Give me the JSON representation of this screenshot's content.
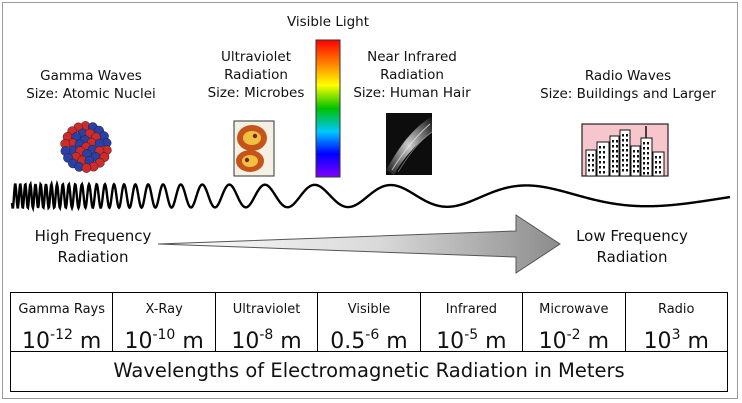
{
  "colors": {
    "spectrum": [
      "#ff0000",
      "#ff8000",
      "#ffff00",
      "#00c000",
      "#00c8ff",
      "#0000ff",
      "#8000ff"
    ],
    "gamma_particle_red": "#d12a2a",
    "gamma_particle_blue": "#2b3fa8",
    "microbe": "#c4541a",
    "arrow_dark": "#9a9a9a",
    "arrow_light": "#f2f2f2",
    "sky_pink": "#f7c6cc"
  },
  "icons": {
    "gamma": "atomic-nucleus-icon",
    "uv": "microbes-icon",
    "visible": "rainbow-spectrum-icon",
    "ir": "human-hair-icon",
    "radio": "city-buildings-icon"
  },
  "categories": [
    {
      "title": "Gamma Waves",
      "size": "Size: Atomic Nuclei"
    },
    {
      "title": "Ultraviolet",
      "title2": "Radiation",
      "size": "Size: Microbes"
    },
    {
      "title": "Visible Light"
    },
    {
      "title": "Near Infrared",
      "title2": "Radiation",
      "size": "Size: Human Hair"
    },
    {
      "title": "Radio Waves",
      "size": "Size: Buildings and Larger"
    }
  ],
  "frequency": {
    "high_line1": "High Frequency",
    "high_line2": "Radiation",
    "low_line1": "Low Frequency",
    "low_line2": "Radiation"
  },
  "table": {
    "columns": [
      {
        "name": "Gamma Rays",
        "mantissa": "10",
        "exponent": "-12",
        "unit": " m"
      },
      {
        "name": "X-Ray",
        "mantissa": "10",
        "exponent": "-10",
        "unit": " m"
      },
      {
        "name": "Ultraviolet",
        "mantissa": "10",
        "exponent": "-8",
        "unit": " m"
      },
      {
        "name": "Visible",
        "mantissa": "0.5",
        "exponent": "-6",
        "unit": " m"
      },
      {
        "name": "Infrared",
        "mantissa": "10",
        "exponent": "-5",
        "unit": " m"
      },
      {
        "name": "Microwave",
        "mantissa": "10",
        "exponent": "-2",
        "unit": " m"
      },
      {
        "name": "Radio",
        "mantissa": "10",
        "exponent": "3",
        "unit": " m"
      }
    ],
    "footer": "Wavelengths of Electromagnetic Radiation in Meters"
  }
}
